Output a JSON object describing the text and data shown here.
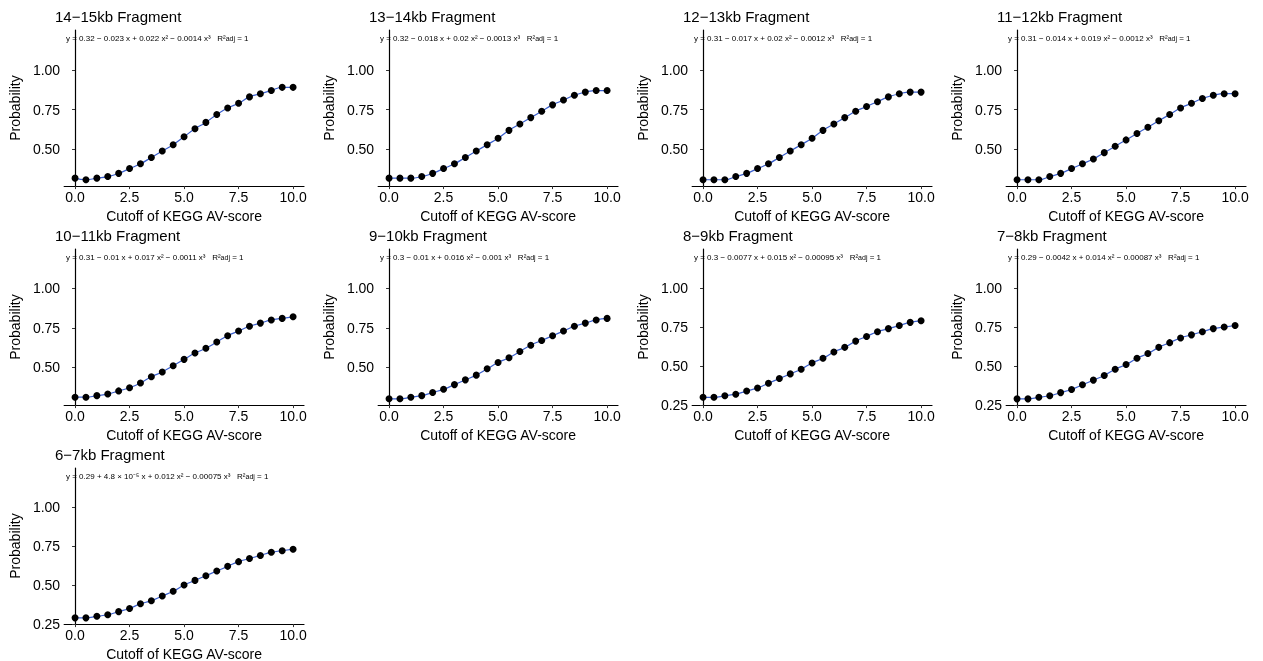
{
  "chart_data": [
    {
      "type": "scatter",
      "title": "14−15kb Fragment",
      "annotations": [
        "y = 0.32 − 0.023 x + 0.022 x² − 0.0014 x³   R²$_{adj}$ = 1"
      ],
      "xlabel": "Cutoff of KEGG AV-score",
      "ylabel": "Probability",
      "marker": "circle",
      "xlim": [
        -0.5,
        10.5
      ],
      "xticks": [
        {
          "value": 0,
          "label": "0.0"
        },
        {
          "value": 2.5,
          "label": "2.5"
        },
        {
          "value": 5,
          "label": "5.0"
        },
        {
          "value": 7.5,
          "label": "7.5"
        },
        {
          "value": 10,
          "label": "10.0"
        }
      ],
      "ylim": [
        0.27,
        1.25
      ],
      "yticks": [
        {
          "value": 0.5,
          "label": "0.50"
        },
        {
          "value": 0.75,
          "label": "0.75"
        },
        {
          "value": 1,
          "label": "1.00"
        }
      ],
      "x": [
        0,
        0.5,
        1,
        1.5,
        2,
        2.5,
        3,
        3.5,
        4,
        4.5,
        5,
        5.5,
        6,
        6.5,
        7,
        7.5,
        8,
        8.5,
        9,
        9.5,
        10
      ],
      "series": [
        {
          "type": "line",
          "marker": "none",
          "color": "#3a5fcd",
          "values": [
            0.32,
            0.31,
            0.32,
            0.33,
            0.35,
            0.38,
            0.41,
            0.45,
            0.49,
            0.53,
            0.58,
            0.63,
            0.67,
            0.72,
            0.76,
            0.79,
            0.83,
            0.85,
            0.87,
            0.89,
            0.89
          ]
        },
        {
          "color": "#000000",
          "values": [
            0.32,
            0.31,
            0.32,
            0.33,
            0.35,
            0.38,
            0.41,
            0.45,
            0.49,
            0.53,
            0.58,
            0.63,
            0.67,
            0.72,
            0.76,
            0.79,
            0.83,
            0.85,
            0.87,
            0.89,
            0.89
          ]
        }
      ]
    },
    {
      "type": "scatter",
      "title": "13−14kb Fragment",
      "annotations": [
        "y = 0.32 − 0.018 x + 0.02 x² − 0.0013 x³   R²$_{adj}$ = 1"
      ],
      "xlabel": "Cutoff of KEGG AV-score",
      "ylabel": "Probability",
      "marker": "circle",
      "xlim": [
        -0.5,
        10.5
      ],
      "xticks": [
        {
          "value": 0,
          "label": "0.0"
        },
        {
          "value": 2.5,
          "label": "2.5"
        },
        {
          "value": 5,
          "label": "5.0"
        },
        {
          "value": 7.5,
          "label": "7.5"
        },
        {
          "value": 10,
          "label": "10.0"
        }
      ],
      "ylim": [
        0.27,
        1.25
      ],
      "yticks": [
        {
          "value": 0.5,
          "label": "0.50"
        },
        {
          "value": 0.75,
          "label": "0.75"
        },
        {
          "value": 1,
          "label": "1.00"
        }
      ],
      "x": [
        0,
        0.5,
        1,
        1.5,
        2,
        2.5,
        3,
        3.5,
        4,
        4.5,
        5,
        5.5,
        6,
        6.5,
        7,
        7.5,
        8,
        8.5,
        9,
        9.5,
        10
      ],
      "series": [
        {
          "type": "line",
          "marker": "none",
          "color": "#3a5fcd",
          "values": [
            0.32,
            0.32,
            0.32,
            0.33,
            0.35,
            0.38,
            0.41,
            0.45,
            0.49,
            0.53,
            0.57,
            0.62,
            0.66,
            0.7,
            0.74,
            0.78,
            0.81,
            0.84,
            0.86,
            0.87,
            0.87
          ]
        },
        {
          "color": "#000000",
          "values": [
            0.32,
            0.32,
            0.32,
            0.33,
            0.35,
            0.38,
            0.41,
            0.45,
            0.49,
            0.53,
            0.57,
            0.62,
            0.66,
            0.7,
            0.74,
            0.78,
            0.81,
            0.84,
            0.86,
            0.87,
            0.87
          ]
        }
      ]
    },
    {
      "type": "scatter",
      "title": "12−13kb Fragment",
      "annotations": [
        "y = 0.31 − 0.017 x + 0.02 x² − 0.0012 x³   R²$_{adj}$ = 1"
      ],
      "xlabel": "Cutoff of KEGG AV-score",
      "ylabel": "Probability",
      "marker": "circle",
      "xlim": [
        -0.5,
        10.5
      ],
      "xticks": [
        {
          "value": 0,
          "label": "0.0"
        },
        {
          "value": 2.5,
          "label": "2.5"
        },
        {
          "value": 5,
          "label": "5.0"
        },
        {
          "value": 7.5,
          "label": "7.5"
        },
        {
          "value": 10,
          "label": "10.0"
        }
      ],
      "ylim": [
        0.27,
        1.25
      ],
      "yticks": [
        {
          "value": 0.5,
          "label": "0.50"
        },
        {
          "value": 0.75,
          "label": "0.75"
        },
        {
          "value": 1,
          "label": "1.00"
        }
      ],
      "x": [
        0,
        0.5,
        1,
        1.5,
        2,
        2.5,
        3,
        3.5,
        4,
        4.5,
        5,
        5.5,
        6,
        6.5,
        7,
        7.5,
        8,
        8.5,
        9,
        9.5,
        10
      ],
      "series": [
        {
          "type": "line",
          "marker": "none",
          "color": "#3a5fcd",
          "values": [
            0.31,
            0.31,
            0.31,
            0.33,
            0.35,
            0.38,
            0.41,
            0.45,
            0.49,
            0.53,
            0.57,
            0.62,
            0.66,
            0.7,
            0.74,
            0.77,
            0.8,
            0.83,
            0.85,
            0.86,
            0.86
          ]
        },
        {
          "color": "#000000",
          "values": [
            0.31,
            0.31,
            0.31,
            0.33,
            0.35,
            0.38,
            0.41,
            0.45,
            0.49,
            0.53,
            0.57,
            0.62,
            0.66,
            0.7,
            0.74,
            0.77,
            0.8,
            0.83,
            0.85,
            0.86,
            0.86
          ]
        }
      ]
    },
    {
      "type": "scatter",
      "title": "11−12kb Fragment",
      "annotations": [
        "y = 0.31 − 0.014 x + 0.019 x² − 0.0012 x³   R²$_{adj}$ = 1"
      ],
      "xlabel": "Cutoff of KEGG AV-score",
      "ylabel": "Probability",
      "marker": "circle",
      "xlim": [
        -0.5,
        10.5
      ],
      "xticks": [
        {
          "value": 0,
          "label": "0.0"
        },
        {
          "value": 2.5,
          "label": "2.5"
        },
        {
          "value": 5,
          "label": "5.0"
        },
        {
          "value": 7.5,
          "label": "7.5"
        },
        {
          "value": 10,
          "label": "10.0"
        }
      ],
      "ylim": [
        0.27,
        1.25
      ],
      "yticks": [
        {
          "value": 0.5,
          "label": "0.50"
        },
        {
          "value": 0.75,
          "label": "0.75"
        },
        {
          "value": 1,
          "label": "1.00"
        }
      ],
      "x": [
        0,
        0.5,
        1,
        1.5,
        2,
        2.5,
        3,
        3.5,
        4,
        4.5,
        5,
        5.5,
        6,
        6.5,
        7,
        7.5,
        8,
        8.5,
        9,
        9.5,
        10
      ],
      "series": [
        {
          "type": "line",
          "marker": "none",
          "color": "#3a5fcd",
          "values": [
            0.31,
            0.31,
            0.31,
            0.33,
            0.35,
            0.38,
            0.41,
            0.44,
            0.48,
            0.52,
            0.56,
            0.6,
            0.64,
            0.68,
            0.72,
            0.76,
            0.79,
            0.82,
            0.84,
            0.85,
            0.85
          ]
        },
        {
          "color": "#000000",
          "values": [
            0.31,
            0.31,
            0.31,
            0.33,
            0.35,
            0.38,
            0.41,
            0.44,
            0.48,
            0.52,
            0.56,
            0.6,
            0.64,
            0.68,
            0.72,
            0.76,
            0.79,
            0.82,
            0.84,
            0.85,
            0.85
          ]
        }
      ]
    },
    {
      "type": "scatter",
      "title": "10−11kb Fragment",
      "annotations": [
        "y = 0.31 − 0.01 x + 0.017 x² − 0.0011 x³   R²$_{adj}$ = 1"
      ],
      "xlabel": "Cutoff of KEGG AV-score",
      "ylabel": "Probability",
      "marker": "circle",
      "xlim": [
        -0.5,
        10.5
      ],
      "xticks": [
        {
          "value": 0,
          "label": "0.0"
        },
        {
          "value": 2.5,
          "label": "2.5"
        },
        {
          "value": 5,
          "label": "5.0"
        },
        {
          "value": 7.5,
          "label": "7.5"
        },
        {
          "value": 10,
          "label": "10.0"
        }
      ],
      "ylim": [
        0.26,
        1.25
      ],
      "yticks": [
        {
          "value": 0.5,
          "label": "0.50"
        },
        {
          "value": 0.75,
          "label": "0.75"
        },
        {
          "value": 1,
          "label": "1.00"
        }
      ],
      "x": [
        0,
        0.5,
        1,
        1.5,
        2,
        2.5,
        3,
        3.5,
        4,
        4.5,
        5,
        5.5,
        6,
        6.5,
        7,
        7.5,
        8,
        8.5,
        9,
        9.5,
        10
      ],
      "series": [
        {
          "type": "line",
          "marker": "none",
          "color": "#3a5fcd",
          "values": [
            0.31,
            0.31,
            0.32,
            0.33,
            0.35,
            0.37,
            0.4,
            0.44,
            0.47,
            0.51,
            0.55,
            0.59,
            0.62,
            0.66,
            0.7,
            0.73,
            0.76,
            0.78,
            0.8,
            0.81,
            0.82
          ]
        },
        {
          "color": "#000000",
          "values": [
            0.31,
            0.31,
            0.32,
            0.33,
            0.35,
            0.37,
            0.4,
            0.44,
            0.47,
            0.51,
            0.55,
            0.59,
            0.62,
            0.66,
            0.7,
            0.73,
            0.76,
            0.78,
            0.8,
            0.81,
            0.82
          ]
        }
      ]
    },
    {
      "type": "scatter",
      "title": "9−10kb Fragment",
      "annotations": [
        "y = 0.3 − 0.01 x + 0.016 x² − 0.001 x³   R²$_{adj}$ = 1"
      ],
      "xlabel": "Cutoff of KEGG AV-score",
      "ylabel": "Probability",
      "marker": "circle",
      "xlim": [
        -0.5,
        10.5
      ],
      "xticks": [
        {
          "value": 0,
          "label": "0.0"
        },
        {
          "value": 2.5,
          "label": "2.5"
        },
        {
          "value": 5,
          "label": "5.0"
        },
        {
          "value": 7.5,
          "label": "7.5"
        },
        {
          "value": 10,
          "label": "10.0"
        }
      ],
      "ylim": [
        0.26,
        1.25
      ],
      "yticks": [
        {
          "value": 0.5,
          "label": "0.50"
        },
        {
          "value": 0.75,
          "label": "0.75"
        },
        {
          "value": 1,
          "label": "1.00"
        }
      ],
      "x": [
        0,
        0.5,
        1,
        1.5,
        2,
        2.5,
        3,
        3.5,
        4,
        4.5,
        5,
        5.5,
        6,
        6.5,
        7,
        7.5,
        8,
        8.5,
        9,
        9.5,
        10
      ],
      "series": [
        {
          "type": "line",
          "marker": "none",
          "color": "#3a5fcd",
          "values": [
            0.3,
            0.3,
            0.31,
            0.32,
            0.34,
            0.36,
            0.39,
            0.42,
            0.45,
            0.49,
            0.53,
            0.56,
            0.6,
            0.64,
            0.67,
            0.7,
            0.73,
            0.76,
            0.78,
            0.8,
            0.81
          ]
        },
        {
          "color": "#000000",
          "values": [
            0.3,
            0.3,
            0.31,
            0.32,
            0.34,
            0.36,
            0.39,
            0.42,
            0.45,
            0.49,
            0.53,
            0.56,
            0.6,
            0.64,
            0.67,
            0.7,
            0.73,
            0.76,
            0.78,
            0.8,
            0.81
          ]
        }
      ]
    },
    {
      "type": "scatter",
      "title": "8−9kb Fragment",
      "annotations": [
        "y = 0.3 − 0.0077 x + 0.015 x² − 0.00095 x³   R²$_{adj}$ = 1"
      ],
      "xlabel": "Cutoff of KEGG AV-score",
      "ylabel": "Probability",
      "marker": "circle",
      "xlim": [
        -0.5,
        10.5
      ],
      "xticks": [
        {
          "value": 0,
          "label": "0.0"
        },
        {
          "value": 2.5,
          "label": "2.5"
        },
        {
          "value": 5,
          "label": "5.0"
        },
        {
          "value": 7.5,
          "label": "7.5"
        },
        {
          "value": 10,
          "label": "10.0"
        }
      ],
      "ylim": [
        0.25,
        1.25
      ],
      "yticks": [
        {
          "value": 0.25,
          "label": "0.25"
        },
        {
          "value": 0.5,
          "label": "0.50"
        },
        {
          "value": 0.75,
          "label": "0.75"
        },
        {
          "value": 1,
          "label": "1.00"
        }
      ],
      "x": [
        0,
        0.5,
        1,
        1.5,
        2,
        2.5,
        3,
        3.5,
        4,
        4.5,
        5,
        5.5,
        6,
        6.5,
        7,
        7.5,
        8,
        8.5,
        9,
        9.5,
        10
      ],
      "series": [
        {
          "type": "line",
          "marker": "none",
          "color": "#3a5fcd",
          "values": [
            0.3,
            0.3,
            0.31,
            0.32,
            0.34,
            0.36,
            0.39,
            0.42,
            0.45,
            0.48,
            0.52,
            0.55,
            0.59,
            0.62,
            0.66,
            0.69,
            0.72,
            0.74,
            0.76,
            0.78,
            0.79
          ]
        },
        {
          "color": "#000000",
          "values": [
            0.3,
            0.3,
            0.31,
            0.32,
            0.34,
            0.36,
            0.39,
            0.42,
            0.45,
            0.48,
            0.52,
            0.55,
            0.59,
            0.62,
            0.66,
            0.69,
            0.72,
            0.74,
            0.76,
            0.78,
            0.79
          ]
        }
      ]
    },
    {
      "type": "scatter",
      "title": "7−8kb Fragment",
      "annotations": [
        "y = 0.29 − 0.0042 x + 0.014 x² − 0.00087 x³   R²$_{adj}$ = 1"
      ],
      "xlabel": "Cutoff of KEGG AV-score",
      "ylabel": "Probability",
      "marker": "circle",
      "xlim": [
        -0.5,
        10.5
      ],
      "xticks": [
        {
          "value": 0,
          "label": "0.0"
        },
        {
          "value": 2.5,
          "label": "2.5"
        },
        {
          "value": 5,
          "label": "5.0"
        },
        {
          "value": 7.5,
          "label": "7.5"
        },
        {
          "value": 10,
          "label": "10.0"
        }
      ],
      "ylim": [
        0.25,
        1.25
      ],
      "yticks": [
        {
          "value": 0.25,
          "label": "0.25"
        },
        {
          "value": 0.5,
          "label": "0.50"
        },
        {
          "value": 0.75,
          "label": "0.75"
        },
        {
          "value": 1,
          "label": "1.00"
        }
      ],
      "x": [
        0,
        0.5,
        1,
        1.5,
        2,
        2.5,
        3,
        3.5,
        4,
        4.5,
        5,
        5.5,
        6,
        6.5,
        7,
        7.5,
        8,
        8.5,
        9,
        9.5,
        10
      ],
      "series": [
        {
          "type": "line",
          "marker": "none",
          "color": "#3a5fcd",
          "values": [
            0.29,
            0.29,
            0.3,
            0.31,
            0.33,
            0.35,
            0.38,
            0.41,
            0.44,
            0.48,
            0.51,
            0.55,
            0.58,
            0.62,
            0.65,
            0.68,
            0.7,
            0.72,
            0.74,
            0.75,
            0.76
          ]
        },
        {
          "color": "#000000",
          "values": [
            0.29,
            0.29,
            0.3,
            0.31,
            0.33,
            0.35,
            0.38,
            0.41,
            0.44,
            0.48,
            0.51,
            0.55,
            0.58,
            0.62,
            0.65,
            0.68,
            0.7,
            0.72,
            0.74,
            0.75,
            0.76
          ]
        }
      ]
    },
    {
      "type": "scatter",
      "title": "6−7kb Fragment",
      "annotations": [
        "y = 0.29 + 4.8 × 10⁻⁵ x + 0.012 x² − 0.00075 x³   R²$_{adj}$ = 1"
      ],
      "xlabel": "Cutoff of KEGG AV-score",
      "ylabel": "Probability",
      "marker": "circle",
      "xlim": [
        -0.5,
        10.5
      ],
      "xticks": [
        {
          "value": 0,
          "label": "0.0"
        },
        {
          "value": 2.5,
          "label": "2.5"
        },
        {
          "value": 5,
          "label": "5.0"
        },
        {
          "value": 7.5,
          "label": "7.5"
        },
        {
          "value": 10,
          "label": "10.0"
        }
      ],
      "ylim": [
        0.25,
        1.25
      ],
      "yticks": [
        {
          "value": 0.25,
          "label": "0.25"
        },
        {
          "value": 0.5,
          "label": "0.50"
        },
        {
          "value": 0.75,
          "label": "0.75"
        },
        {
          "value": 1,
          "label": "1.00"
        }
      ],
      "x": [
        0,
        0.5,
        1,
        1.5,
        2,
        2.5,
        3,
        3.5,
        4,
        4.5,
        5,
        5.5,
        6,
        6.5,
        7,
        7.5,
        8,
        8.5,
        9,
        9.5,
        10
      ],
      "series": [
        {
          "type": "line",
          "marker": "none",
          "color": "#3a5fcd",
          "values": [
            0.29,
            0.29,
            0.3,
            0.31,
            0.33,
            0.35,
            0.38,
            0.4,
            0.43,
            0.46,
            0.5,
            0.53,
            0.56,
            0.59,
            0.62,
            0.65,
            0.67,
            0.69,
            0.71,
            0.72,
            0.73
          ]
        },
        {
          "color": "#000000",
          "values": [
            0.29,
            0.29,
            0.3,
            0.31,
            0.33,
            0.35,
            0.38,
            0.4,
            0.43,
            0.46,
            0.5,
            0.53,
            0.56,
            0.59,
            0.62,
            0.65,
            0.67,
            0.69,
            0.71,
            0.72,
            0.73
          ]
        }
      ]
    }
  ]
}
